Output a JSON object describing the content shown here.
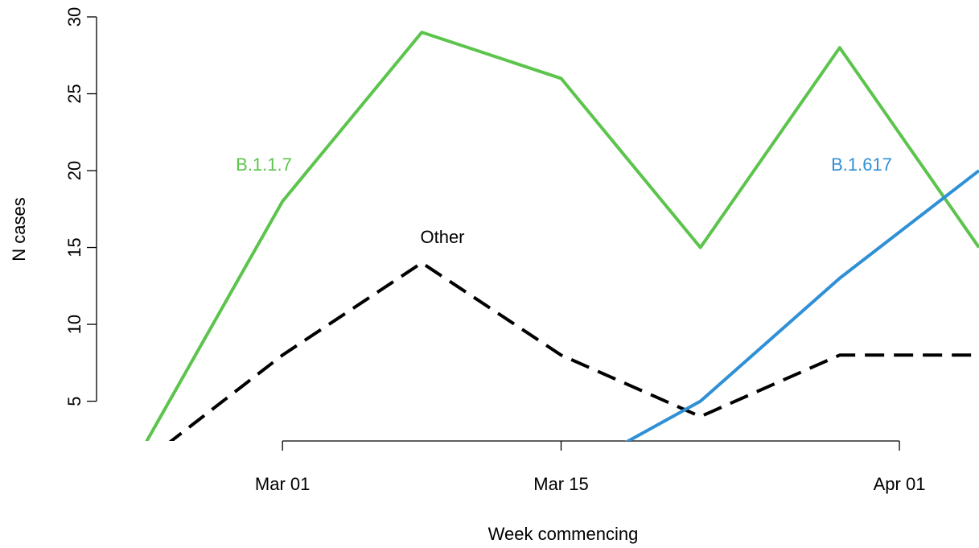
{
  "chart_data": {
    "type": "line",
    "xlabel": "Week commencing",
    "ylabel": "N cases",
    "x": [
      "2021-02-22",
      "2021-03-01",
      "2021-03-08",
      "2021-03-15",
      "2021-03-22",
      "2021-03-29",
      "2021-04-05"
    ],
    "xticks": [
      {
        "date": "2021-03-01",
        "label": "Mar 01"
      },
      {
        "date": "2021-03-15",
        "label": "Mar 15"
      },
      {
        "date": "2021-04-01",
        "label": "Apr 01"
      }
    ],
    "yticks": [
      5,
      10,
      15,
      20,
      25,
      30
    ],
    "xlim": [
      "2021-02-22",
      "2021-04-05"
    ],
    "ylim": [
      1,
      30
    ],
    "grid": false,
    "series": [
      {
        "name": "B.1.1.7",
        "color": "#5cc44c",
        "dash": "solid",
        "values": [
          2,
          18,
          29,
          26,
          15,
          28,
          15
        ]
      },
      {
        "name": "Other",
        "color": "#000000",
        "dash": "dashed",
        "values": [
          1,
          8,
          14,
          8,
          4,
          8,
          8
        ]
      },
      {
        "name": "B.1.617",
        "color": "#2f90d6",
        "dash": "solid",
        "values": [
          null,
          null,
          null,
          0,
          5,
          13,
          20
        ]
      }
    ]
  }
}
